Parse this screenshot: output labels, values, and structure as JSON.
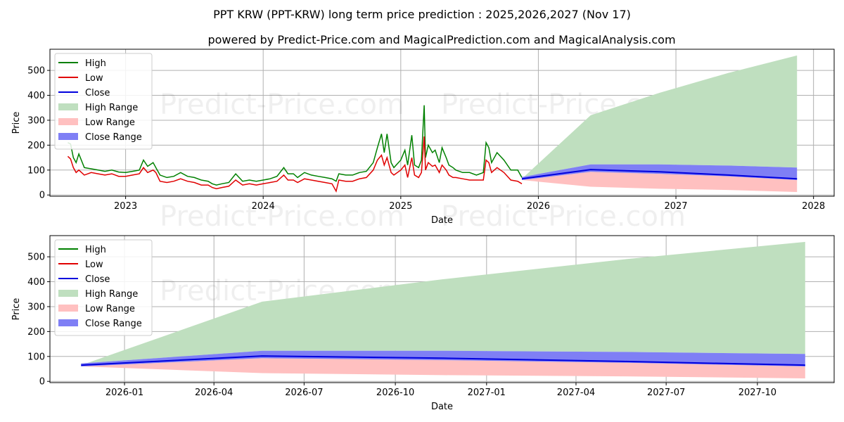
{
  "title": "PPT KRW (PPT-KRW) long term price prediction : 2025,2026,2027 (Nov 17)",
  "subtitle": "powered by Predict-Price.com and MagicalPrediction.com and MagicalAnalysis.com",
  "watermark": "Predict-Price.com",
  "colors": {
    "high": "#008000",
    "low": "#e00000",
    "close": "#0000dd",
    "high_range": "#bfdfbf",
    "low_range": "#ffc0c0",
    "close_range": "#7f7ff5"
  },
  "chart_data": [
    {
      "type": "line",
      "xlabel": "Date",
      "ylabel": "Price",
      "xlim": [
        2022.45,
        2028.15
      ],
      "ylim": [
        -5,
        585
      ],
      "x_ticks": [
        2023,
        2024,
        2025,
        2026,
        2027,
        2028
      ],
      "x_tick_labels": [
        "2023",
        "2024",
        "2025",
        "2026",
        "2027",
        "2028"
      ],
      "y_ticks": [
        0,
        100,
        200,
        300,
        400,
        500
      ],
      "y_tick_labels": [
        "0",
        "100",
        "200",
        "300",
        "400",
        "500"
      ],
      "legend": [
        "High",
        "Low",
        "Close",
        "High Range",
        "Low Range",
        "Close Range"
      ],
      "legend_placement": "top-left",
      "history": {
        "x": [
          2022.58,
          2022.6,
          2022.62,
          2022.64,
          2022.66,
          2022.7,
          2022.75,
          2022.8,
          2022.85,
          2022.9,
          2022.95,
          2023.0,
          2023.05,
          2023.1,
          2023.13,
          2023.16,
          2023.2,
          2023.22,
          2023.25,
          2023.3,
          2023.35,
          2023.4,
          2023.45,
          2023.5,
          2023.55,
          2023.6,
          2023.63,
          2023.66,
          2023.7,
          2023.75,
          2023.8,
          2023.85,
          2023.9,
          2023.95,
          2024.0,
          2024.05,
          2024.1,
          2024.15,
          2024.18,
          2024.22,
          2024.25,
          2024.3,
          2024.35,
          2024.4,
          2024.45,
          2024.5,
          2024.53,
          2024.55,
          2024.6,
          2024.65,
          2024.7,
          2024.75,
          2024.8,
          2024.83,
          2024.86,
          2024.88,
          2024.9,
          2024.93,
          2024.95,
          2025.0,
          2025.03,
          2025.05,
          2025.08,
          2025.1,
          2025.13,
          2025.15,
          2025.17,
          2025.18,
          2025.2,
          2025.23,
          2025.25,
          2025.28,
          2025.3,
          2025.33,
          2025.35,
          2025.38,
          2025.4,
          2025.45,
          2025.5,
          2025.55,
          2025.6,
          2025.62,
          2025.64,
          2025.66,
          2025.7,
          2025.75,
          2025.8,
          2025.85,
          2025.88
        ],
        "high": [
          210,
          205,
          150,
          130,
          165,
          110,
          105,
          100,
          95,
          100,
          92,
          90,
          95,
          100,
          140,
          115,
          130,
          110,
          80,
          70,
          75,
          90,
          75,
          70,
          60,
          55,
          45,
          40,
          45,
          50,
          85,
          55,
          60,
          55,
          60,
          65,
          75,
          110,
          85,
          85,
          70,
          90,
          80,
          75,
          70,
          65,
          55,
          85,
          80,
          80,
          90,
          95,
          130,
          190,
          245,
          170,
          245,
          130,
          110,
          140,
          180,
          120,
          240,
          120,
          110,
          140,
          360,
          150,
          200,
          170,
          180,
          130,
          190,
          150,
          120,
          110,
          100,
          90,
          90,
          80,
          90,
          210,
          190,
          130,
          170,
          140,
          100,
          100,
          70
        ],
        "low": [
          155,
          145,
          110,
          90,
          100,
          80,
          90,
          85,
          80,
          85,
          75,
          75,
          80,
          85,
          110,
          90,
          100,
          90,
          55,
          50,
          55,
          65,
          55,
          50,
          40,
          40,
          30,
          25,
          30,
          35,
          60,
          40,
          45,
          40,
          45,
          50,
          55,
          80,
          60,
          60,
          50,
          65,
          60,
          55,
          50,
          45,
          15,
          60,
          55,
          55,
          65,
          70,
          100,
          140,
          160,
          120,
          150,
          90,
          80,
          100,
          120,
          70,
          150,
          80,
          70,
          90,
          235,
          100,
          130,
          115,
          120,
          90,
          120,
          100,
          80,
          70,
          70,
          65,
          60,
          60,
          60,
          140,
          130,
          90,
          110,
          90,
          60,
          55,
          45
        ]
      },
      "forecast": {
        "x": [
          2025.88,
          2026.38,
          2026.88,
          2027.38,
          2027.88
        ],
        "high_upper": [
          65,
          320,
          410,
          490,
          560
        ],
        "close_upper": [
          72,
          123,
          123,
          118,
          110
        ],
        "close": [
          65,
          102,
          93,
          80,
          65
        ],
        "close_lower": [
          60,
          93,
          85,
          75,
          60
        ],
        "low_lower": [
          60,
          33,
          25,
          20,
          12
        ]
      }
    },
    {
      "type": "line",
      "xlabel": "Date",
      "ylabel": "Price",
      "xlim": [
        2025.794,
        2027.96
      ],
      "ylim": [
        -5,
        585
      ],
      "x_ticks": [
        2026.0,
        2026.247,
        2026.496,
        2026.748,
        2027.0,
        2027.247,
        2027.496,
        2027.748
      ],
      "x_tick_labels": [
        "2026-01",
        "2026-04",
        "2026-07",
        "2026-10",
        "2027-01",
        "2027-04",
        "2027-07",
        "2027-10"
      ],
      "y_ticks": [
        0,
        100,
        200,
        300,
        400,
        500
      ],
      "y_tick_labels": [
        "0",
        "100",
        "200",
        "300",
        "400",
        "500"
      ],
      "legend": [
        "High",
        "Low",
        "Close",
        "High Range",
        "Low Range",
        "Close Range"
      ],
      "legend_placement": "top-left",
      "forecast": {
        "x": [
          2025.88,
          2026.38,
          2026.88,
          2027.38,
          2027.88
        ],
        "high_upper": [
          65,
          320,
          410,
          490,
          560
        ],
        "close_upper": [
          72,
          123,
          123,
          118,
          110
        ],
        "close": [
          65,
          102,
          93,
          80,
          65
        ],
        "close_lower": [
          60,
          93,
          85,
          75,
          60
        ],
        "low_lower": [
          60,
          33,
          25,
          20,
          12
        ]
      }
    }
  ]
}
